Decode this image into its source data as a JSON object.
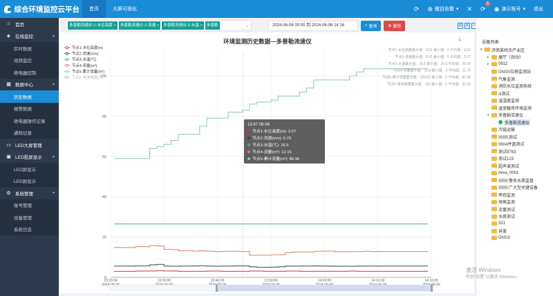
{
  "app": {
    "title": "综合环境监控云平台",
    "nav": [
      "首页",
      "大屏可视化"
    ],
    "right_items": [
      {
        "icon": "refresh-icon",
        "label": ""
      },
      {
        "icon": "alarm-icon",
        "label": "醒目告警"
      },
      {
        "icon": "mute-icon",
        "label": ""
      },
      {
        "icon": "notification-icon",
        "label": "",
        "badge": "1"
      },
      {
        "icon": "user-icon",
        "label": "演示账号"
      },
      {
        "icon": "",
        "label": "退出"
      }
    ]
  },
  "sidebar": {
    "items": [
      {
        "type": "group",
        "icon": "home-icon",
        "label": "首页",
        "arrow": ""
      },
      {
        "type": "group",
        "icon": "monitor-icon",
        "label": "在线监控",
        "arrow": "▾"
      },
      {
        "type": "sub",
        "label": "实时数据"
      },
      {
        "type": "sub",
        "label": "视频监控"
      },
      {
        "type": "sub",
        "label": "继电器控制"
      },
      {
        "type": "group",
        "icon": "data-center-icon",
        "label": "数据中心",
        "arrow": "▾"
      },
      {
        "type": "sub",
        "label": "历史数据",
        "active": true
      },
      {
        "type": "sub",
        "label": "报警数据"
      },
      {
        "type": "sub",
        "label": "继电器操作记录"
      },
      {
        "type": "sub",
        "label": "通知记录"
      },
      {
        "type": "group",
        "icon": "led-screen-icon",
        "label": "LED大屏管理",
        "arrow": ""
      },
      {
        "type": "group",
        "icon": "led-display-icon",
        "label": "LED投屏显示",
        "arrow": "▾"
      },
      {
        "type": "sub",
        "label": "LED屏显示"
      },
      {
        "type": "sub",
        "label": "LED屏显示"
      },
      {
        "type": "group",
        "icon": "settings-icon",
        "label": "系统管理",
        "arrow": "▾"
      },
      {
        "type": "sub",
        "label": "账号管理"
      },
      {
        "type": "sub",
        "label": "设备管理"
      },
      {
        "type": "sub",
        "label": "系统日志"
      }
    ]
  },
  "toolbar": {
    "tags": [
      "多普勒流速仪-1-水位高度",
      "多普勒流速仪-2-流速",
      "多普勒流速仪-3-水温",
      "多普勒"
    ],
    "date_range": "2024-06-06 00:00 到 2024-06-06 14:16",
    "query_label": "查询",
    "delete_label": "删除"
  },
  "chart_data": {
    "type": "line",
    "title": "环境监测历史数据—多普勒流速仪",
    "download_icon": "download-icon",
    "legend": [
      {
        "name": "节点1-水位高度(m)",
        "color": "#c23531"
      },
      {
        "name": "节点2-流速(m/s)",
        "color": "#2f4554"
      },
      {
        "name": "节点3-水温(℃)",
        "color": "#61a0a8"
      },
      {
        "name": "节点4-流量(m³)",
        "color": "#d48265"
      },
      {
        "name": "节点5-累计流量(m³)",
        "color": "#91c7ae"
      },
      {
        "name": "节点6-电池电量(%)",
        "color": "#bbbbbb",
        "disabled": true
      }
    ],
    "stats": [
      "节点1-水位高度最大值：3.51  最小值：0  平均值：3.02",
      "节点2-流速最大值：6.41  最小值：0  平均值：5.37",
      "节点3-水温最大值：26.6  最小值：25.6  平均值：26.40",
      "节点4-流量最大值：15.8  最小值：0  平均值：11.78",
      "节点5-累计流量最大值：103.51  最小值：0  平均值：82.08",
      "节点6-电池电量最大值：100  最小值：0  平均值：90.38"
    ],
    "y_ticks": [
      "0",
      "20",
      "40",
      "60",
      "80",
      "100"
    ],
    "ylim": [
      0,
      112
    ],
    "x_labels": [
      {
        "time": "13:20:34",
        "date": "2024-06-06"
      },
      {
        "time": "13:30:00",
        "date": "2024-06-06"
      },
      {
        "time": "13:40:00",
        "date": "2024-06-06"
      },
      {
        "time": "13:50:00",
        "date": "2024-06-06"
      },
      {
        "time": "14:00:00",
        "date": "2024-06-06"
      },
      {
        "time": "14:10:00",
        "date": "2024-06-06"
      },
      {
        "time": "14:16:05",
        "date": "2024-06-06"
      }
    ],
    "series": [
      {
        "name": "节点1-水位高度(m)",
        "color": "#c23531",
        "values": [
          3.0,
          3.0,
          3.0,
          3.1,
          3.1,
          3.2,
          3.3,
          3.2,
          3.2,
          3.0,
          3.0,
          3.0,
          3.0,
          3.1,
          3.1,
          3.0,
          3.0,
          3.0,
          3.0,
          3.1,
          3.1,
          3.0,
          3.0,
          3.0,
          3.1,
          3.1,
          3.0,
          3.0,
          3.0,
          3.0,
          3.0,
          3.0,
          3.0,
          3.1,
          3.0,
          3.0,
          3.0,
          3.0,
          3.0,
          3.0,
          3.0,
          3.0,
          3.0,
          3.0,
          3.0
        ]
      },
      {
        "name": "节点2-流速(m/s)",
        "color": "#2f4554",
        "values": [
          5.6,
          5.6,
          5.6,
          5.7,
          5.7,
          6.2,
          6.4,
          5.6,
          5.5,
          5.6,
          5.6,
          5.7,
          5.8,
          5.6,
          5.5,
          5.6,
          5.6,
          5.7,
          5.7,
          5.2,
          5.0,
          5.0,
          5.1,
          5.2,
          5.6,
          5.6,
          5.6,
          5.6,
          5.7,
          5.6,
          5.6,
          5.5,
          5.5,
          5.5,
          5.6,
          5.6,
          5.6,
          5.6,
          5.6,
          5.6,
          5.6,
          5.6,
          5.6,
          5.6,
          5.6
        ]
      },
      {
        "name": "节点3-水温(℃)",
        "color": "#61a0a8",
        "values": [
          26.5,
          26.5,
          26.5,
          26.5,
          26.5,
          26.5,
          26.5,
          26.5,
          26.5,
          26.5,
          26.5,
          26.5,
          26.5,
          26.5,
          26.5,
          26.5,
          26.5,
          26.5,
          26.5,
          26.5,
          26.5,
          26.5,
          26.5,
          26.5,
          26.5,
          26.5,
          26.5,
          26.5,
          26.5,
          26.5,
          26.5,
          26.5,
          26.5,
          26.5,
          26.5,
          26.5,
          26.5,
          26.5,
          26.5,
          26.5,
          26.5,
          26.5,
          26.5,
          26.5,
          26.5
        ]
      },
      {
        "name": "节点4-流量(m³)",
        "color": "#d48265",
        "values": [
          14.8,
          14.8,
          14.8,
          15.2,
          15.2,
          15.8,
          15.6,
          13.9,
          13.8,
          13.2,
          13.2,
          13.0,
          13.2,
          13.0,
          12.8,
          12.9,
          12.9,
          12.9,
          12.8,
          11.0,
          11.0,
          11.0,
          11.2,
          11.2,
          12.3,
          12.6,
          12.6,
          12.6,
          12.9,
          13.0,
          13.0,
          12.7,
          12.7,
          12.7,
          12.8,
          12.9,
          12.8,
          12.8,
          12.8,
          12.8,
          12.8,
          12.8,
          12.8,
          12.8,
          12.8
        ]
      },
      {
        "name": "节点5-累计流量(m³)",
        "color": "#91c7ae",
        "values": [
          59,
          59,
          59,
          59,
          59,
          64,
          65,
          66,
          68,
          71,
          71,
          71,
          75,
          79,
          79,
          79,
          82,
          82,
          83,
          86,
          87,
          87,
          88,
          90,
          90,
          90,
          92,
          94,
          98,
          98,
          98,
          98,
          98,
          100,
          102,
          103.5,
          103.5,
          103.5,
          103.5,
          103.5,
          103.5,
          103.5,
          103.5,
          103.5,
          103.5
        ]
      }
    ],
    "tooltip": {
      "title": "13:47 06-06",
      "rows": [
        {
          "color": "#c23531",
          "text": "节点1-水位高度(m): 3.27"
        },
        {
          "color": "#2f4554",
          "text": "节点2-流速(m/s): 5.79"
        },
        {
          "color": "#61a0a8",
          "text": "节点3-水温(℃): 26.5"
        },
        {
          "color": "#d48265",
          "text": "节点4-流量(m³): 12.15"
        },
        {
          "color": "#91c7ae",
          "text": "节点5-累计流量(m³): 86.96"
        }
      ]
    }
  },
  "right_panel": {
    "title": "设备列表",
    "tree": [
      {
        "level": 0,
        "label": "济南某综合产业区",
        "toggle": "▾",
        "type": "folder"
      },
      {
        "level": 1,
        "label": "展厅（劲动）",
        "toggle": "▸",
        "type": "folder"
      },
      {
        "level": 1,
        "label": "0912",
        "toggle": "▸",
        "type": "folder"
      },
      {
        "level": 1,
        "label": "GNSS位移监测站",
        "toggle": "",
        "type": "folder"
      },
      {
        "level": 1,
        "label": "气象监测",
        "toggle": "",
        "type": "folder"
      },
      {
        "level": 1,
        "label": "消防水位监测系统",
        "toggle": "",
        "type": "folder"
      },
      {
        "level": 1,
        "label": "sl测试",
        "toggle": "",
        "type": "folder"
      },
      {
        "level": 1,
        "label": "温湿度监测",
        "toggle": "",
        "type": "folder"
      },
      {
        "level": 1,
        "label": "温室暖房环境监测",
        "toggle": "",
        "type": "folder"
      },
      {
        "level": 1,
        "label": "多普勒流速仪",
        "toggle": "▾",
        "type": "folder"
      },
      {
        "level": 2,
        "label": "多普勒流速仪",
        "toggle": "",
        "type": "leaf",
        "selected": true
      },
      {
        "level": 1,
        "label": "冷链运输",
        "toggle": "",
        "type": "folder"
      },
      {
        "level": 1,
        "label": "测试",
        "toggle": "",
        "type": "folder",
        "blur": true
      },
      {
        "level": 1,
        "label": "0604并盖测试",
        "toggle": "",
        "type": "folder"
      },
      {
        "level": 1,
        "label": "测试9783",
        "toggle": "",
        "type": "folder"
      },
      {
        "level": 1,
        "label": "测试123",
        "toggle": "",
        "type": "folder"
      },
      {
        "level": 1,
        "label": "超声波测试",
        "toggle": "",
        "type": "folder"
      },
      {
        "level": 1,
        "label": "Area_0001",
        "toggle": "",
        "type": "folder"
      },
      {
        "level": 1,
        "label": "警务水质监管",
        "toggle": "",
        "type": "folder",
        "blur": true
      },
      {
        "level": 1,
        "label": "广大型关键设备",
        "toggle": "",
        "type": "folder",
        "blur": true
      },
      {
        "level": 1,
        "label": "甲烷监测",
        "toggle": "",
        "type": "folder"
      },
      {
        "level": 1,
        "label": "倾角监测",
        "toggle": "",
        "type": "folder"
      },
      {
        "level": 1,
        "label": "流量测试",
        "toggle": "",
        "type": "folder"
      },
      {
        "level": 1,
        "label": "水质测试",
        "toggle": "",
        "type": "folder"
      },
      {
        "level": 1,
        "label": "321",
        "toggle": "",
        "type": "folder"
      },
      {
        "level": 1,
        "label": "井盖",
        "toggle": "",
        "type": "folder"
      },
      {
        "level": 1,
        "label": "GNSS",
        "toggle": "",
        "type": "folder"
      }
    ]
  },
  "watermark": {
    "line1": "激活 Windows",
    "line2": "转到\"设置\"以激活 Windows。"
  }
}
